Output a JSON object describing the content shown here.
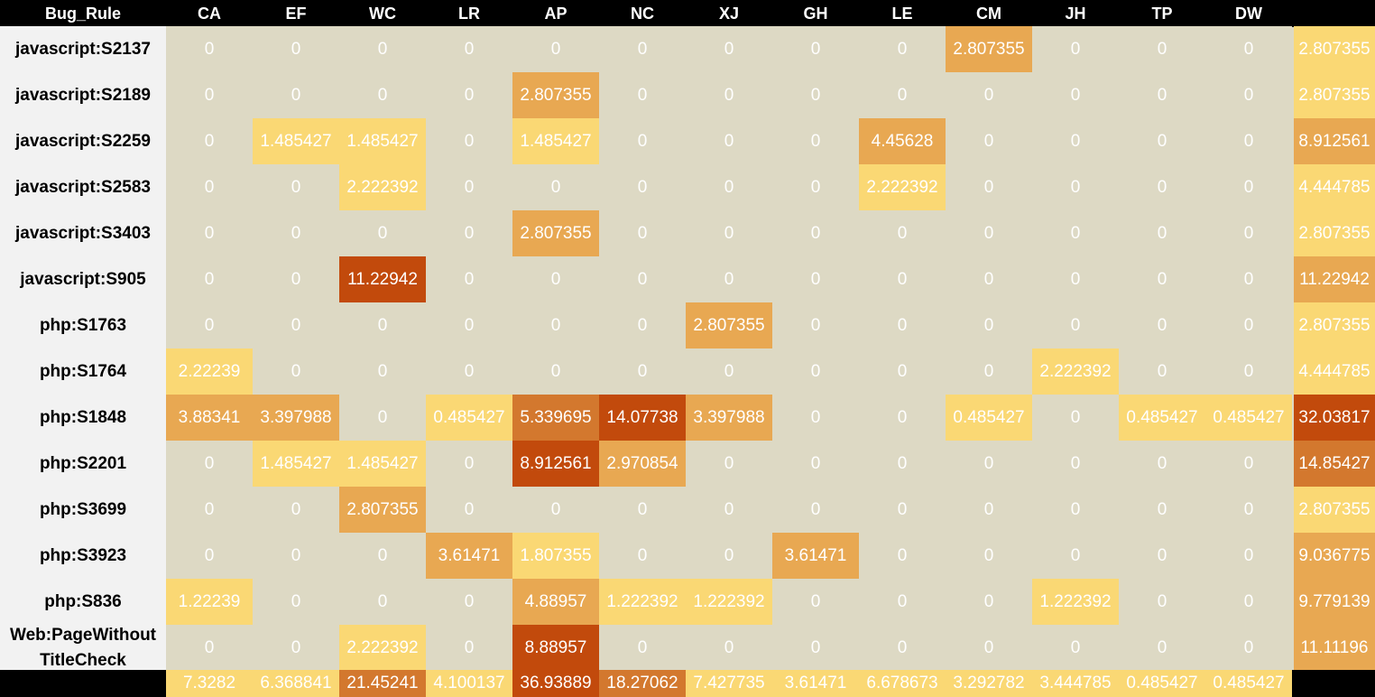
{
  "chart_data": {
    "type": "heatmap",
    "corner_label": "Bug_Rule",
    "columns": [
      "CA",
      "EF",
      "WC",
      "LR",
      "AP",
      "NC",
      "XJ",
      "GH",
      "LE",
      "CM",
      "JH",
      "TP",
      "DW"
    ],
    "rows": [
      {
        "label": "javascript:S2137",
        "values": [
          "0",
          "0",
          "0",
          "0",
          "0",
          "0",
          "0",
          "0",
          "0",
          "2.807355",
          "0",
          "0",
          "0"
        ],
        "total": "2.807355"
      },
      {
        "label": "javascript:S2189",
        "values": [
          "0",
          "0",
          "0",
          "0",
          "2.807355",
          "0",
          "0",
          "0",
          "0",
          "0",
          "0",
          "0",
          "0"
        ],
        "total": "2.807355"
      },
      {
        "label": "javascript:S2259",
        "values": [
          "0",
          "1.485427",
          "1.485427",
          "0",
          "1.485427",
          "0",
          "0",
          "0",
          "4.45628",
          "0",
          "0",
          "0",
          "0"
        ],
        "total": "8.912561"
      },
      {
        "label": "javascript:S2583",
        "values": [
          "0",
          "0",
          "2.222392",
          "0",
          "0",
          "0",
          "0",
          "0",
          "2.222392",
          "0",
          "0",
          "0",
          "0"
        ],
        "total": "4.444785"
      },
      {
        "label": "javascript:S3403",
        "values": [
          "0",
          "0",
          "0",
          "0",
          "2.807355",
          "0",
          "0",
          "0",
          "0",
          "0",
          "0",
          "0",
          "0"
        ],
        "total": "2.807355"
      },
      {
        "label": "javascript:S905",
        "values": [
          "0",
          "0",
          "11.22942",
          "0",
          "0",
          "0",
          "0",
          "0",
          "0",
          "0",
          "0",
          "0",
          "0"
        ],
        "total": "11.22942"
      },
      {
        "label": "php:S1763",
        "values": [
          "0",
          "0",
          "0",
          "0",
          "0",
          "0",
          "2.807355",
          "0",
          "0",
          "0",
          "0",
          "0",
          "0"
        ],
        "total": "2.807355"
      },
      {
        "label": "php:S1764",
        "values": [
          "2.22239",
          "0",
          "0",
          "0",
          "0",
          "0",
          "0",
          "0",
          "0",
          "0",
          "2.222392",
          "0",
          "0"
        ],
        "total": "4.444785"
      },
      {
        "label": "php:S1848",
        "values": [
          "3.88341",
          "3.397988",
          "0",
          "0.485427",
          "5.339695",
          "14.07738",
          "3.397988",
          "0",
          "0",
          "0.485427",
          "0",
          "0.485427",
          "0.485427"
        ],
        "total": "32.03817"
      },
      {
        "label": "php:S2201",
        "values": [
          "0",
          "1.485427",
          "1.485427",
          "0",
          "8.912561",
          "2.970854",
          "0",
          "0",
          "0",
          "0",
          "0",
          "0",
          "0"
        ],
        "total": "14.85427"
      },
      {
        "label": "php:S3699",
        "values": [
          "0",
          "0",
          "2.807355",
          "0",
          "0",
          "0",
          "0",
          "0",
          "0",
          "0",
          "0",
          "0",
          "0"
        ],
        "total": "2.807355"
      },
      {
        "label": "php:S3923",
        "values": [
          "0",
          "0",
          "0",
          "3.61471",
          "1.807355",
          "0",
          "0",
          "3.61471",
          "0",
          "0",
          "0",
          "0",
          "0"
        ],
        "total": "9.036775"
      },
      {
        "label": "php:S836",
        "values": [
          "1.22239",
          "0",
          "0",
          "0",
          "4.88957",
          "1.222392",
          "1.222392",
          "0",
          "0",
          "0",
          "1.222392",
          "0",
          "0"
        ],
        "total": "9.779139"
      },
      {
        "label": "Web:PageWithout TitleCheck",
        "values": [
          "0",
          "0",
          "2.222392",
          "0",
          "8.88957",
          "0",
          "0",
          "0",
          "0",
          "0",
          "0",
          "0",
          "0"
        ],
        "total": "11.11196"
      }
    ],
    "column_totals": [
      "7.3282",
      "6.368841",
      "21.45241",
      "4.100137",
      "36.93889",
      "18.27062",
      "7.427735",
      "3.61471",
      "6.678673",
      "3.292782",
      "3.444785",
      "0.485427",
      "0.485427"
    ],
    "colors": {
      "zero": "#ddd9c4",
      "low": "#fad874",
      "mid_low": "#e8a852",
      "mid": "#d3782e",
      "high": "#c24a0c",
      "header_bg": "#000000",
      "header_text": "#ffffff",
      "row_label_bg": "#f2f2f2",
      "cell_text": "#ffffff"
    }
  }
}
